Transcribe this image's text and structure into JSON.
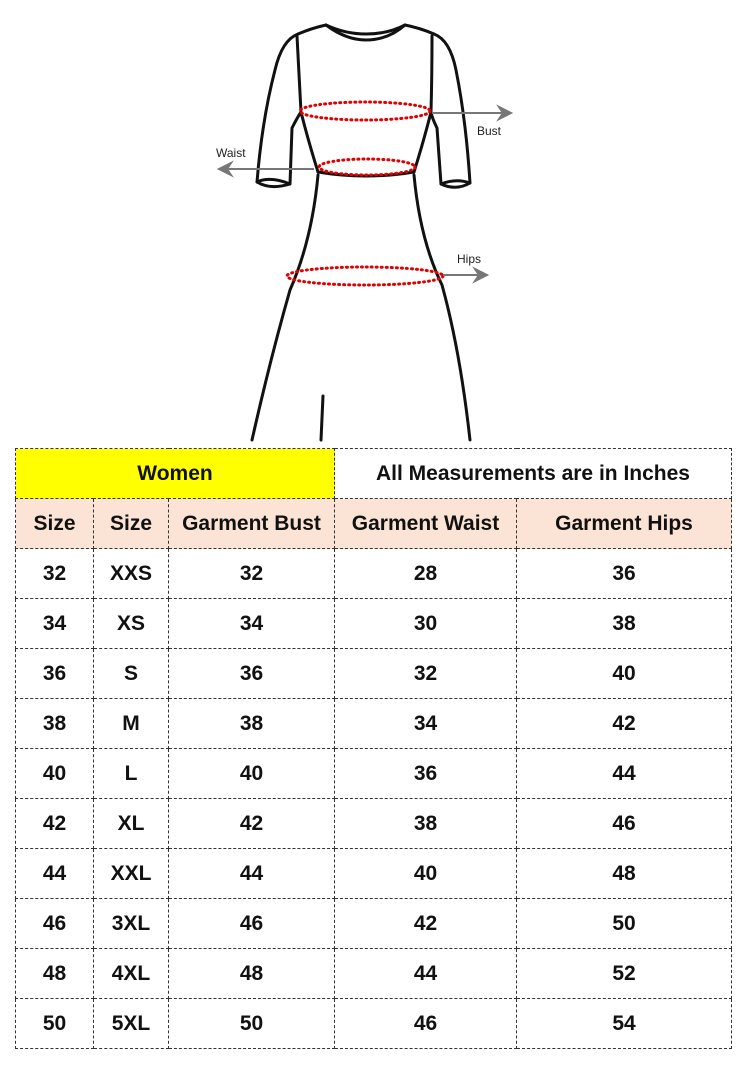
{
  "figure": {
    "labels": {
      "bust": "Bust",
      "waist": "Waist",
      "hips": "Hips"
    },
    "measure_color": "#e00000"
  },
  "table": {
    "title_left": "Women",
    "title_right": "All Measurements are in Inches",
    "title_left_bg": "#ffff00",
    "header_bg": "#fbe4d5",
    "headers": [
      "Size",
      "Size",
      "Garment Bust",
      "Garment Waist",
      "Garment Hips"
    ],
    "rows": [
      [
        "32",
        "XXS",
        "32",
        "28",
        "36"
      ],
      [
        "34",
        "XS",
        "34",
        "30",
        "38"
      ],
      [
        "36",
        "S",
        "36",
        "32",
        "40"
      ],
      [
        "38",
        "M",
        "38",
        "34",
        "42"
      ],
      [
        "40",
        "L",
        "40",
        "36",
        "44"
      ],
      [
        "42",
        "XL",
        "42",
        "38",
        "46"
      ],
      [
        "44",
        "XXL",
        "44",
        "40",
        "48"
      ],
      [
        "46",
        "3XL",
        "46",
        "42",
        "50"
      ],
      [
        "48",
        "4XL",
        "48",
        "44",
        "52"
      ],
      [
        "50",
        "5XL",
        "50",
        "46",
        "54"
      ]
    ]
  }
}
